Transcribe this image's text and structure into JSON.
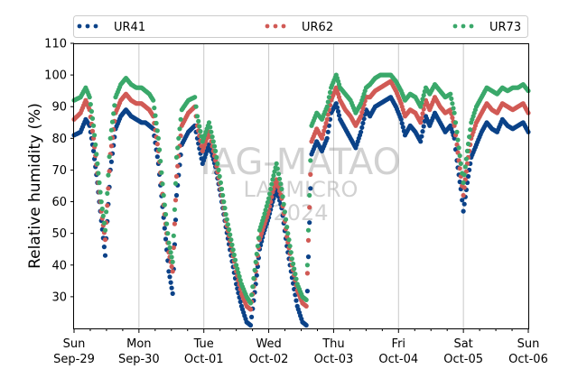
{
  "chart_data": {
    "type": "scatter",
    "xlabel": "",
    "ylabel": "Relative humidity (%)",
    "ylim": [
      20,
      110
    ],
    "y_ticks": [
      30,
      40,
      50,
      60,
      70,
      80,
      90,
      100,
      110
    ],
    "xlim": [
      "2024-09-29",
      "2024-10-06"
    ],
    "x_ticks": [
      {
        "day": "Sun",
        "date": "Sep-29"
      },
      {
        "day": "Mon",
        "date": "Sep-30"
      },
      {
        "day": "Tue",
        "date": "Oct-01"
      },
      {
        "day": "Wed",
        "date": "Oct-02"
      },
      {
        "day": "Thu",
        "date": "Oct-03"
      },
      {
        "day": "Fri",
        "date": "Oct-04"
      },
      {
        "day": "Sat",
        "date": "Oct-05"
      },
      {
        "day": "Sun",
        "date": "Oct-06"
      }
    ],
    "grid": "vertical",
    "legend_position": "top",
    "watermark": [
      "IAG-MATAO",
      "LABMICRO",
      "2024"
    ],
    "series": [
      {
        "name": "UR41",
        "color": "#0b4288",
        "points": [
          [
            0.0,
            81
          ],
          [
            0.1,
            82
          ],
          [
            0.18,
            86
          ],
          [
            0.24,
            84
          ],
          [
            0.3,
            76
          ],
          [
            0.36,
            66
          ],
          [
            0.42,
            54
          ],
          [
            0.48,
            43
          ],
          [
            0.56,
            70
          ],
          [
            0.64,
            83
          ],
          [
            0.72,
            87
          ],
          [
            0.8,
            89
          ],
          [
            0.88,
            87
          ],
          [
            0.96,
            86
          ],
          [
            1.04,
            85
          ],
          [
            1.1,
            85
          ],
          [
            1.16,
            84
          ],
          [
            1.22,
            83
          ],
          [
            1.3,
            72
          ],
          [
            1.38,
            55
          ],
          [
            1.46,
            38
          ],
          [
            1.52,
            31
          ],
          [
            1.58,
            62
          ],
          [
            1.66,
            78
          ],
          [
            1.76,
            82
          ],
          [
            1.86,
            84
          ],
          [
            1.9,
            80
          ],
          [
            1.98,
            72
          ],
          [
            2.08,
            78
          ],
          [
            2.18,
            71
          ],
          [
            2.26,
            62
          ],
          [
            2.34,
            52
          ],
          [
            2.42,
            43
          ],
          [
            2.5,
            34
          ],
          [
            2.58,
            27
          ],
          [
            2.66,
            22
          ],
          [
            2.72,
            21
          ],
          [
            2.8,
            34
          ],
          [
            2.86,
            45
          ],
          [
            2.92,
            50
          ],
          [
            3.0,
            55
          ],
          [
            3.06,
            60
          ],
          [
            3.12,
            64
          ],
          [
            3.2,
            58
          ],
          [
            3.28,
            46
          ],
          [
            3.36,
            36
          ],
          [
            3.44,
            27
          ],
          [
            3.52,
            22
          ],
          [
            3.58,
            21
          ],
          [
            3.66,
            75
          ],
          [
            3.74,
            79
          ],
          [
            3.82,
            76
          ],
          [
            3.9,
            80
          ],
          [
            3.96,
            88
          ],
          [
            4.04,
            91
          ],
          [
            4.1,
            86
          ],
          [
            4.18,
            83
          ],
          [
            4.26,
            80
          ],
          [
            4.34,
            77
          ],
          [
            4.42,
            82
          ],
          [
            4.5,
            89
          ],
          [
            4.56,
            87
          ],
          [
            4.64,
            90
          ],
          [
            4.72,
            91
          ],
          [
            4.8,
            92
          ],
          [
            4.88,
            93
          ],
          [
            4.96,
            90
          ],
          [
            5.04,
            86
          ],
          [
            5.1,
            81
          ],
          [
            5.18,
            84
          ],
          [
            5.26,
            82
          ],
          [
            5.34,
            79
          ],
          [
            5.42,
            87
          ],
          [
            5.48,
            84
          ],
          [
            5.56,
            88
          ],
          [
            5.64,
            85
          ],
          [
            5.72,
            82
          ],
          [
            5.8,
            84
          ],
          [
            5.86,
            80
          ],
          [
            5.9,
            73
          ],
          [
            5.96,
            64
          ],
          [
            6.0,
            57
          ],
          [
            6.06,
            66
          ],
          [
            6.12,
            74
          ],
          [
            6.2,
            78
          ],
          [
            6.28,
            82
          ],
          [
            6.36,
            85
          ],
          [
            6.44,
            83
          ],
          [
            6.52,
            82
          ],
          [
            6.6,
            86
          ],
          [
            6.68,
            84
          ],
          [
            6.76,
            83
          ],
          [
            6.84,
            84
          ],
          [
            6.92,
            85
          ],
          [
            7.0,
            82
          ]
        ]
      },
      {
        "name": "UR62",
        "color": "#d15a55",
        "points": [
          [
            0.0,
            86
          ],
          [
            0.1,
            88
          ],
          [
            0.18,
            92
          ],
          [
            0.24,
            89
          ],
          [
            0.3,
            80
          ],
          [
            0.36,
            69
          ],
          [
            0.42,
            57
          ],
          [
            0.48,
            48
          ],
          [
            0.56,
            75
          ],
          [
            0.64,
            88
          ],
          [
            0.72,
            92
          ],
          [
            0.8,
            94
          ],
          [
            0.88,
            92
          ],
          [
            0.96,
            91
          ],
          [
            1.04,
            91
          ],
          [
            1.1,
            90
          ],
          [
            1.16,
            89
          ],
          [
            1.22,
            87
          ],
          [
            1.3,
            76
          ],
          [
            1.38,
            59
          ],
          [
            1.46,
            44
          ],
          [
            1.52,
            38
          ],
          [
            1.58,
            68
          ],
          [
            1.66,
            84
          ],
          [
            1.76,
            88
          ],
          [
            1.86,
            90
          ],
          [
            1.9,
            84
          ],
          [
            1.98,
            76
          ],
          [
            2.08,
            82
          ],
          [
            2.18,
            73
          ],
          [
            2.26,
            64
          ],
          [
            2.34,
            54
          ],
          [
            2.42,
            46
          ],
          [
            2.5,
            38
          ],
          [
            2.58,
            31
          ],
          [
            2.66,
            27
          ],
          [
            2.72,
            26
          ],
          [
            2.8,
            38
          ],
          [
            2.86,
            48
          ],
          [
            2.92,
            52
          ],
          [
            3.0,
            57
          ],
          [
            3.06,
            63
          ],
          [
            3.12,
            67
          ],
          [
            3.2,
            61
          ],
          [
            3.28,
            49
          ],
          [
            3.36,
            40
          ],
          [
            3.44,
            32
          ],
          [
            3.52,
            28
          ],
          [
            3.58,
            27
          ],
          [
            3.66,
            79
          ],
          [
            3.74,
            83
          ],
          [
            3.82,
            80
          ],
          [
            3.9,
            86
          ],
          [
            3.96,
            92
          ],
          [
            4.04,
            96
          ],
          [
            4.1,
            92
          ],
          [
            4.18,
            89
          ],
          [
            4.26,
            87
          ],
          [
            4.34,
            84
          ],
          [
            4.42,
            87
          ],
          [
            4.5,
            93
          ],
          [
            4.56,
            93
          ],
          [
            4.64,
            95
          ],
          [
            4.72,
            96
          ],
          [
            4.8,
            97
          ],
          [
            4.88,
            98
          ],
          [
            4.96,
            95
          ],
          [
            5.04,
            91
          ],
          [
            5.1,
            87
          ],
          [
            5.18,
            89
          ],
          [
            5.26,
            88
          ],
          [
            5.34,
            85
          ],
          [
            5.42,
            92
          ],
          [
            5.48,
            89
          ],
          [
            5.56,
            93
          ],
          [
            5.64,
            90
          ],
          [
            5.72,
            88
          ],
          [
            5.8,
            89
          ],
          [
            5.86,
            84
          ],
          [
            5.9,
            78
          ],
          [
            5.96,
            68
          ],
          [
            6.0,
            62
          ],
          [
            6.06,
            72
          ],
          [
            6.12,
            80
          ],
          [
            6.2,
            85
          ],
          [
            6.28,
            88
          ],
          [
            6.36,
            91
          ],
          [
            6.44,
            89
          ],
          [
            6.52,
            88
          ],
          [
            6.6,
            91
          ],
          [
            6.68,
            90
          ],
          [
            6.76,
            89
          ],
          [
            6.84,
            90
          ],
          [
            6.92,
            91
          ],
          [
            7.0,
            88
          ]
        ]
      },
      {
        "name": "UR73",
        "color": "#3aa86a",
        "points": [
          [
            0.0,
            92
          ],
          [
            0.1,
            93
          ],
          [
            0.18,
            96
          ],
          [
            0.24,
            93
          ],
          [
            0.3,
            84
          ],
          [
            0.36,
            72
          ],
          [
            0.42,
            60
          ],
          [
            0.48,
            51
          ],
          [
            0.56,
            80
          ],
          [
            0.64,
            93
          ],
          [
            0.72,
            97
          ],
          [
            0.8,
            99
          ],
          [
            0.88,
            97
          ],
          [
            0.96,
            96
          ],
          [
            1.04,
            96
          ],
          [
            1.1,
            95
          ],
          [
            1.16,
            94
          ],
          [
            1.22,
            92
          ],
          [
            1.3,
            80
          ],
          [
            1.38,
            62
          ],
          [
            1.46,
            47
          ],
          [
            1.52,
            41
          ],
          [
            1.58,
            74
          ],
          [
            1.66,
            89
          ],
          [
            1.76,
            92
          ],
          [
            1.86,
            93
          ],
          [
            1.9,
            87
          ],
          [
            1.98,
            79
          ],
          [
            2.08,
            85
          ],
          [
            2.18,
            76
          ],
          [
            2.26,
            66
          ],
          [
            2.34,
            56
          ],
          [
            2.42,
            48
          ],
          [
            2.5,
            40
          ],
          [
            2.58,
            34
          ],
          [
            2.66,
            30
          ],
          [
            2.72,
            28
          ],
          [
            2.8,
            41
          ],
          [
            2.86,
            51
          ],
          [
            2.92,
            55
          ],
          [
            3.0,
            61
          ],
          [
            3.06,
            67
          ],
          [
            3.12,
            72
          ],
          [
            3.2,
            64
          ],
          [
            3.28,
            52
          ],
          [
            3.36,
            42
          ],
          [
            3.44,
            34
          ],
          [
            3.52,
            30
          ],
          [
            3.58,
            29
          ],
          [
            3.66,
            84
          ],
          [
            3.74,
            88
          ],
          [
            3.82,
            86
          ],
          [
            3.9,
            90
          ],
          [
            3.96,
            96
          ],
          [
            4.04,
            100
          ],
          [
            4.1,
            96
          ],
          [
            4.18,
            94
          ],
          [
            4.26,
            92
          ],
          [
            4.34,
            88
          ],
          [
            4.42,
            91
          ],
          [
            4.5,
            96
          ],
          [
            4.56,
            97
          ],
          [
            4.64,
            99
          ],
          [
            4.72,
            100
          ],
          [
            4.8,
            100
          ],
          [
            4.88,
            100
          ],
          [
            4.96,
            98
          ],
          [
            5.04,
            95
          ],
          [
            5.1,
            92
          ],
          [
            5.18,
            94
          ],
          [
            5.26,
            93
          ],
          [
            5.34,
            90
          ],
          [
            5.42,
            96
          ],
          [
            5.48,
            94
          ],
          [
            5.56,
            97
          ],
          [
            5.64,
            95
          ],
          [
            5.72,
            93
          ],
          [
            5.8,
            94
          ],
          [
            5.86,
            88
          ],
          [
            5.9,
            82
          ],
          [
            5.96,
            72
          ],
          [
            6.0,
            66
          ],
          [
            6.06,
            76
          ],
          [
            6.12,
            85
          ],
          [
            6.2,
            90
          ],
          [
            6.28,
            93
          ],
          [
            6.36,
            96
          ],
          [
            6.44,
            95
          ],
          [
            6.52,
            94
          ],
          [
            6.6,
            96
          ],
          [
            6.68,
            95
          ],
          [
            6.76,
            96
          ],
          [
            6.84,
            96
          ],
          [
            6.92,
            97
          ],
          [
            7.0,
            95
          ]
        ]
      }
    ]
  }
}
